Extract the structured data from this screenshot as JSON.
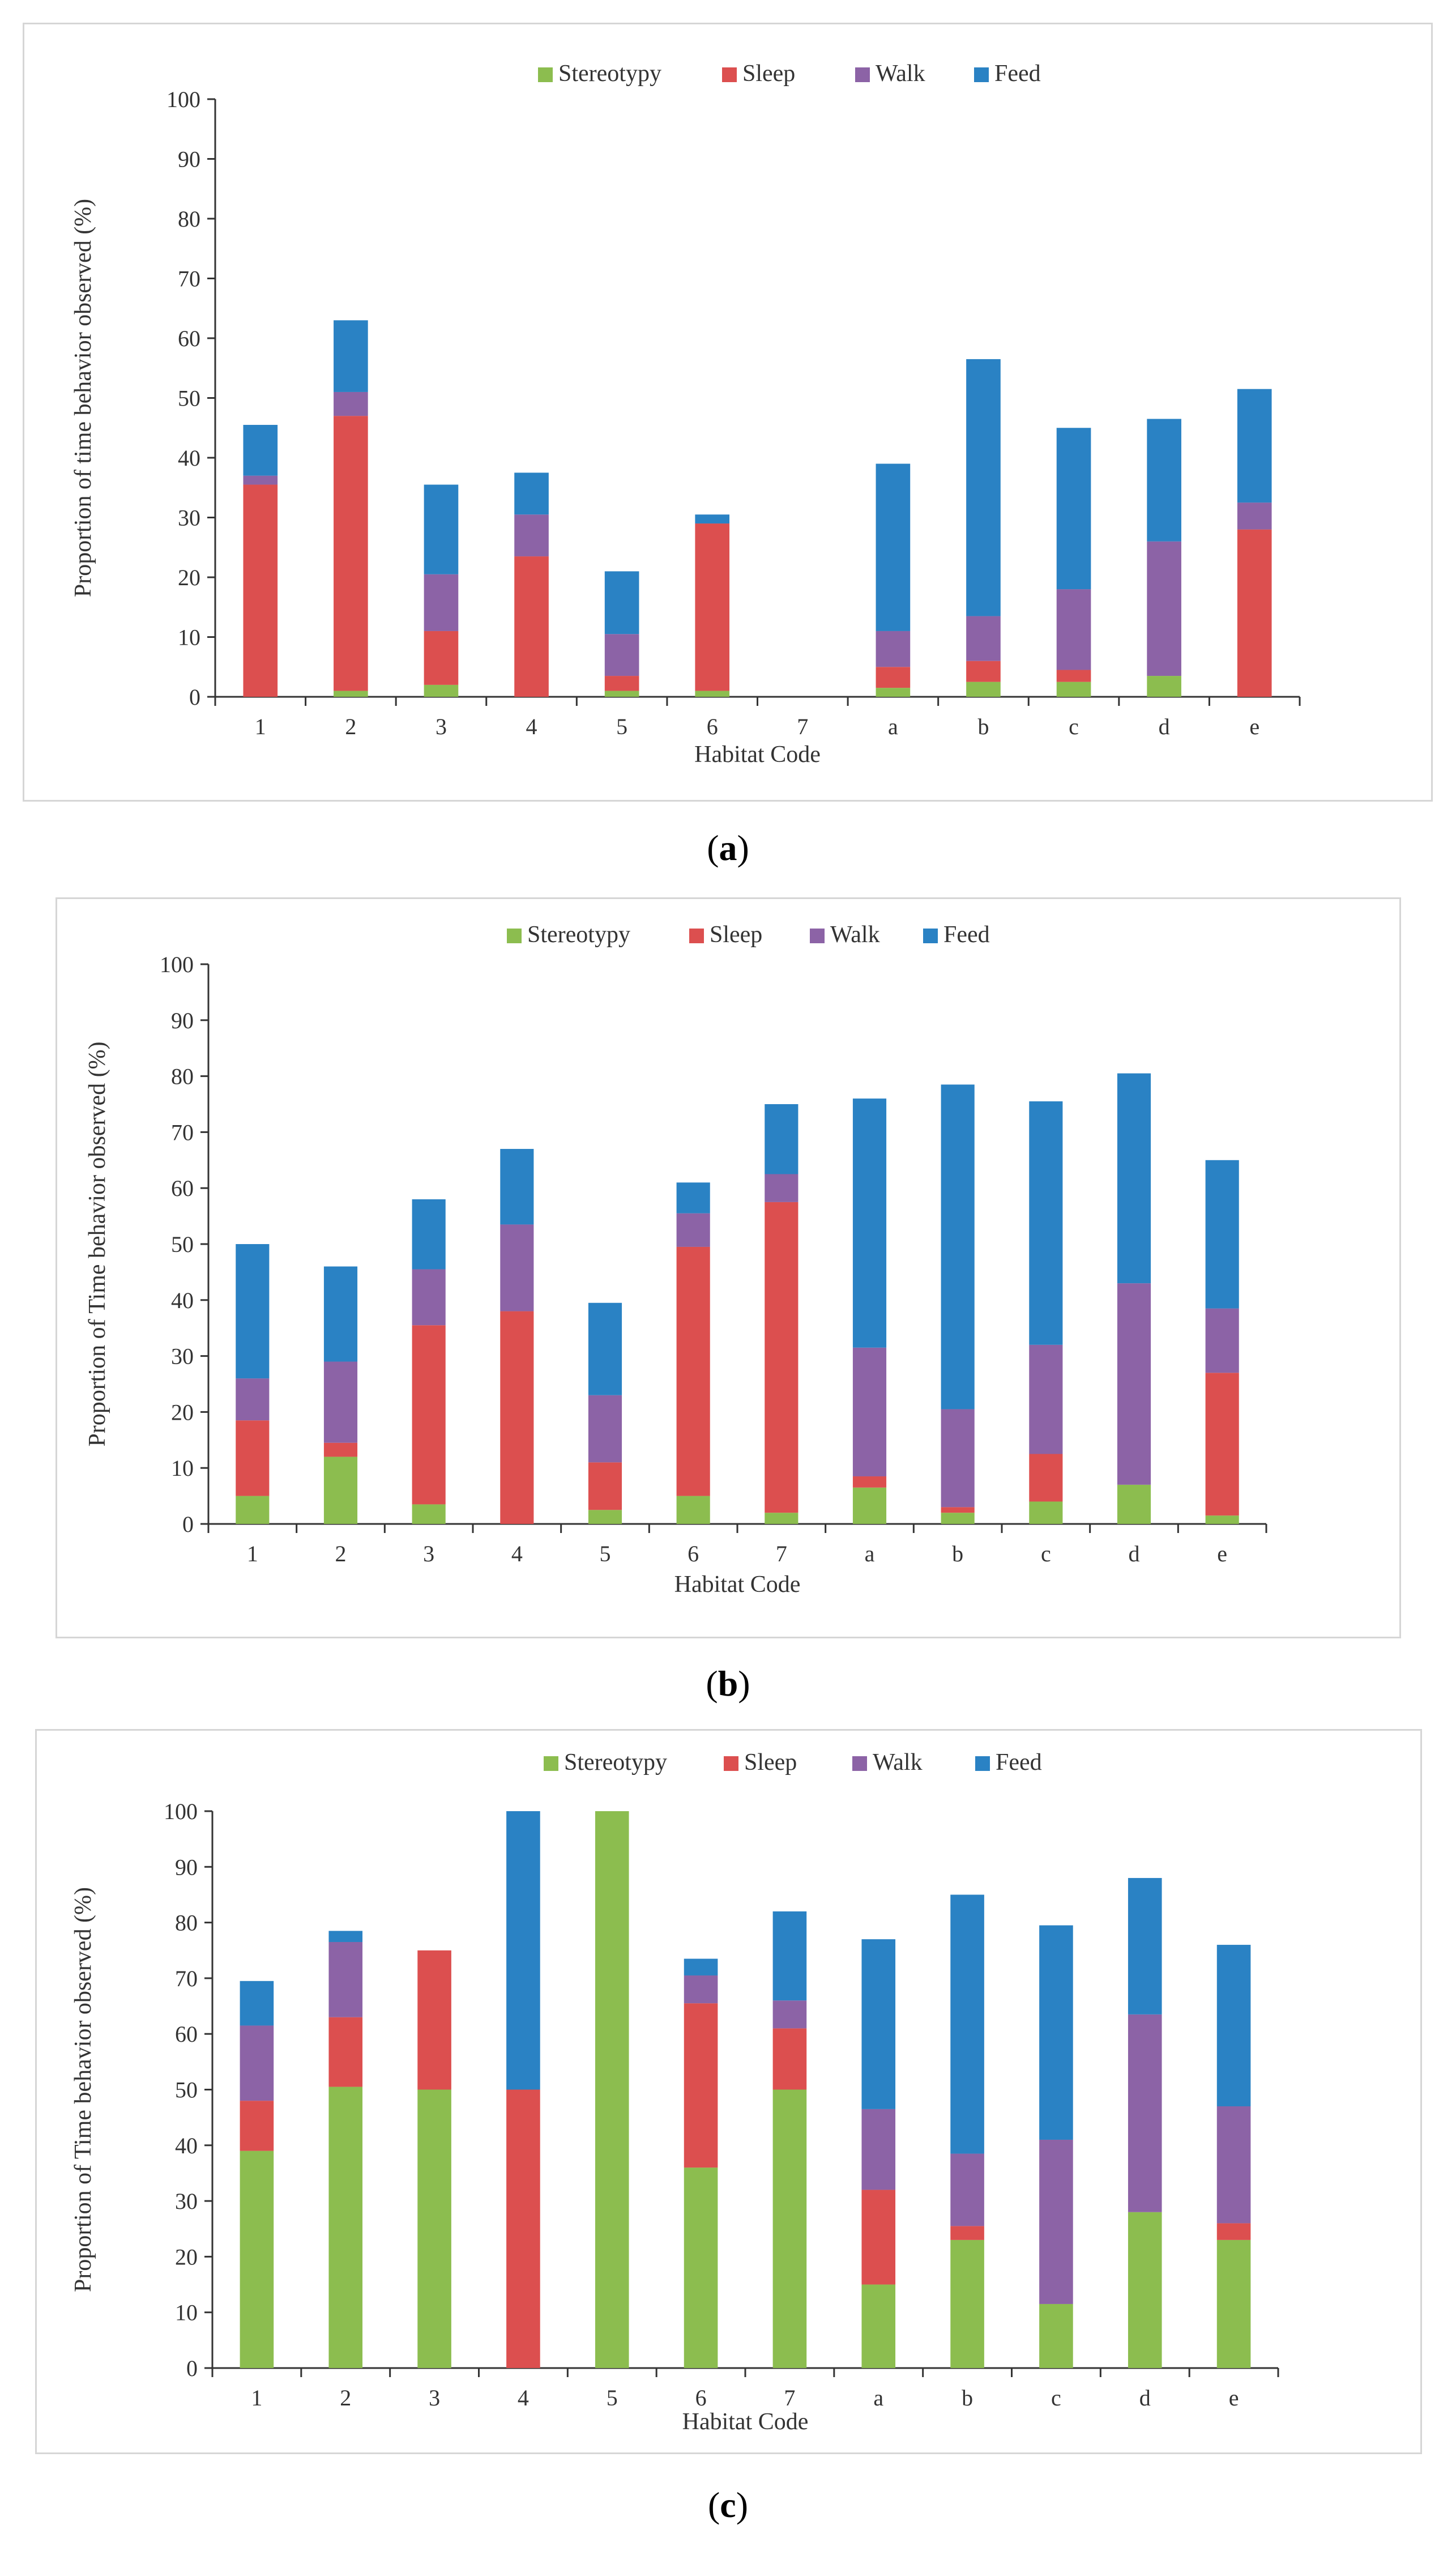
{
  "colors": {
    "Stereotypy": "#8cbd4f",
    "Sleep": "#dc4f4f",
    "Walk": "#8c63a6",
    "Feed": "#2a82c4",
    "axis": "#333333"
  },
  "chart_data": [
    {
      "id": "a",
      "type": "bar",
      "stacked": true,
      "caption_open": "(",
      "caption_letter": "a",
      "caption_close": ")",
      "title": "",
      "xlabel": "Habitat Code",
      "ylabel": "Proportion of time behavior observed (%)",
      "ylim": [
        0,
        100
      ],
      "yticks": [
        0,
        10,
        20,
        30,
        40,
        50,
        60,
        70,
        80,
        90,
        100
      ],
      "legend_position": "top-center",
      "categories": [
        "1",
        "2",
        "3",
        "4",
        "5",
        "6",
        "7",
        "a",
        "b",
        "c",
        "d",
        "e"
      ],
      "series": [
        {
          "name": "Stereotypy",
          "values": [
            0,
            1,
            2,
            0,
            1,
            1,
            0,
            1.5,
            2.5,
            2.5,
            3.5,
            0
          ]
        },
        {
          "name": "Sleep",
          "values": [
            35.5,
            46,
            9,
            23.5,
            2.5,
            28,
            0,
            3.5,
            3.5,
            2,
            0,
            28
          ]
        },
        {
          "name": "Walk",
          "values": [
            1.5,
            4,
            9.5,
            7,
            7,
            0,
            0,
            6,
            7.5,
            13.5,
            22.5,
            4.5
          ]
        },
        {
          "name": "Feed",
          "values": [
            8.5,
            12,
            15,
            7,
            10.5,
            1.5,
            0,
            28,
            43,
            27,
            20.5,
            19
          ]
        }
      ]
    },
    {
      "id": "b",
      "type": "bar",
      "stacked": true,
      "caption_open": "(",
      "caption_letter": "b",
      "caption_close": ")",
      "title": "",
      "xlabel": "Habitat Code",
      "ylabel": "Proportion of Time behavior observed (%)",
      "ylim": [
        0,
        100
      ],
      "yticks": [
        0,
        10,
        20,
        30,
        40,
        50,
        60,
        70,
        80,
        90,
        100
      ],
      "legend_position": "top-center",
      "categories": [
        "1",
        "2",
        "3",
        "4",
        "5",
        "6",
        "7",
        "a",
        "b",
        "c",
        "d",
        "e"
      ],
      "series": [
        {
          "name": "Stereotypy",
          "values": [
            5,
            12,
            3.5,
            0,
            2.5,
            5,
            2,
            6.5,
            2,
            4,
            7,
            1.5
          ]
        },
        {
          "name": "Sleep",
          "values": [
            13.5,
            2.5,
            32,
            38,
            8.5,
            44.5,
            55.5,
            2,
            1,
            8.5,
            0,
            25.5
          ]
        },
        {
          "name": "Walk",
          "values": [
            7.5,
            14.5,
            10,
            15.5,
            12,
            6,
            5,
            23,
            17.5,
            19.5,
            36,
            11.5
          ]
        },
        {
          "name": "Feed",
          "values": [
            24,
            17,
            12.5,
            13.5,
            16.5,
            5.5,
            12.5,
            44.5,
            58,
            43.5,
            37.5,
            26.5
          ]
        }
      ]
    },
    {
      "id": "c",
      "type": "bar",
      "stacked": true,
      "caption_open": "(",
      "caption_letter": "c",
      "caption_close": ")",
      "title": "",
      "xlabel": "Habitat Code",
      "ylabel": "Proportion of Time behavior observed (%)",
      "ylim": [
        0,
        100
      ],
      "yticks": [
        0,
        10,
        20,
        30,
        40,
        50,
        60,
        70,
        80,
        90,
        100
      ],
      "legend_position": "top-center",
      "categories": [
        "1",
        "2",
        "3",
        "4",
        "5",
        "6",
        "7",
        "a",
        "b",
        "c",
        "d",
        "e"
      ],
      "series": [
        {
          "name": "Stereotypy",
          "values": [
            39,
            50.5,
            50,
            0,
            100,
            36,
            50,
            15,
            23,
            11.5,
            28,
            23
          ]
        },
        {
          "name": "Sleep",
          "values": [
            9,
            12.5,
            25,
            50,
            0,
            29.5,
            11,
            17,
            2.5,
            0,
            0,
            3
          ]
        },
        {
          "name": "Walk",
          "values": [
            13.5,
            13.5,
            0,
            0,
            0,
            5,
            5,
            14.5,
            13,
            29.5,
            35.5,
            21
          ]
        },
        {
          "name": "Feed",
          "values": [
            8,
            2,
            0,
            50,
            0,
            3,
            16,
            30.5,
            46.5,
            38.5,
            24.5,
            29
          ]
        }
      ]
    }
  ]
}
